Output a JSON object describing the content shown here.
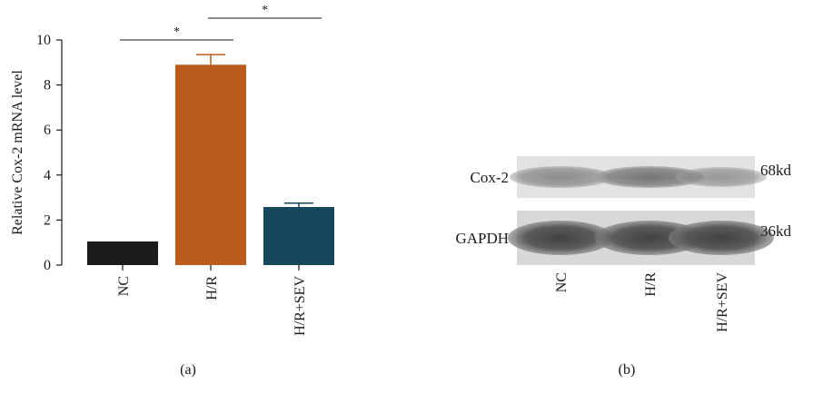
{
  "chart_data": [
    {
      "type": "bar",
      "panel_label": "(a)",
      "ylabel": "Relative Cox-2 mRNA level",
      "ylim": [
        0,
        10
      ],
      "yticks": [
        0,
        2,
        4,
        6,
        8,
        10
      ],
      "categories": [
        "NC",
        "H/R",
        "H/R+SEV"
      ],
      "values": [
        1.05,
        8.9,
        2.58
      ],
      "errors": [
        0,
        0.45,
        0.17
      ],
      "colors": [
        "#1c1c1c",
        "#bb5c1d",
        "#17475c"
      ],
      "significance": [
        {
          "from": "NC",
          "to": "H/R",
          "label": "*"
        },
        {
          "from": "H/R",
          "to": "H/R+SEV",
          "label": "*"
        }
      ],
      "grid": false
    }
  ],
  "blot": {
    "panel_label": "(b)",
    "rows": [
      {
        "name": "Cox-2",
        "size": "68kd"
      },
      {
        "name": "GAPDH",
        "size": "36kd"
      }
    ],
    "lanes": [
      "NC",
      "H/R",
      "H/R+SEV"
    ]
  }
}
